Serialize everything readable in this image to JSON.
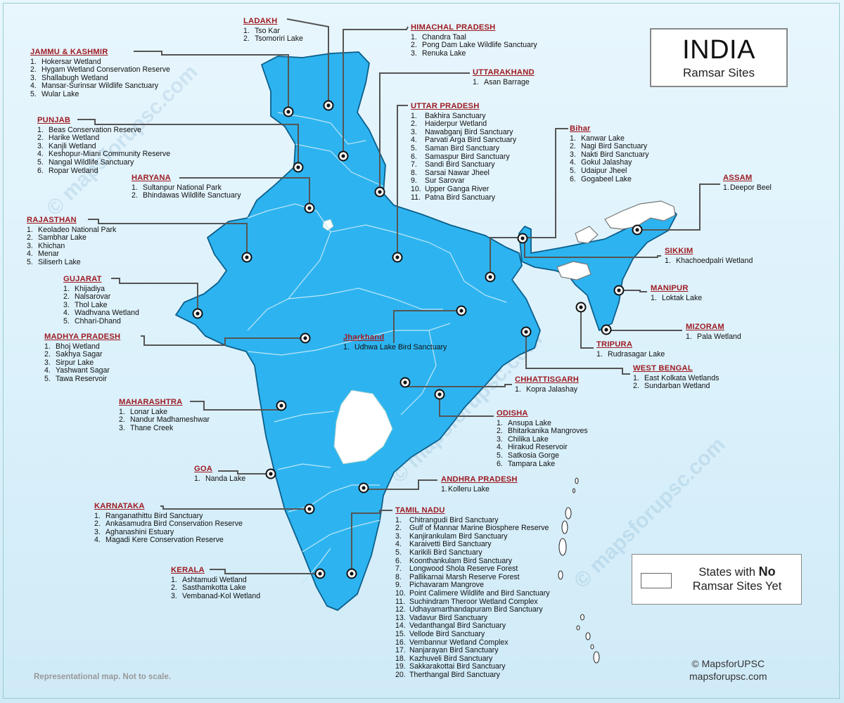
{
  "title": "INDIA",
  "subtitle": "Ramsar Sites",
  "legend": {
    "prefix": "States with ",
    "emphasis": "No",
    "suffix": "Ramsar Sites Yet",
    "swatch_color": "#ffffff"
  },
  "footnote": "Representational map. Not to scale.",
  "credit": {
    "line1": "© MapsforUPSC",
    "line2": "mapsforupsc.com"
  },
  "watermark": "© mapsforupsc.com",
  "colors": {
    "land": "#2db4f0",
    "land_border": "#0c5e8a",
    "no_sites": "#ffffff",
    "heading": "#9e1b22",
    "leader": "#555555"
  },
  "groups": [
    {
      "title": "LADAKH",
      "items": [
        "Tso Kar",
        "Tsomoriri Lake"
      ]
    },
    {
      "title": "HIMACHAL PRADESH",
      "items": [
        "Chandra Taal",
        "Pong Dam Lake Wildlife Sanctuary",
        "Renuka Lake"
      ]
    },
    {
      "title": "JAMMU & KASHMIR",
      "items": [
        "Hokersar Wetland",
        "Hygam Wetland Conservation Reserve",
        "Shallabugh Wetland",
        "Mansar-Surinsar Wildlife Sanctuary",
        "Wular Lake"
      ]
    },
    {
      "title": "UTTARAKHAND",
      "items": [
        "Asan Barrage"
      ]
    },
    {
      "title": "UTTAR PRADESH",
      "items": [
        "Bakhira Sanctuary",
        "Haiderpur Wetland",
        "Nawabganj Bird Sanctuary",
        "Parvati Arga Bird Sanctuary",
        "Saman Bird Sanctuary",
        "Samaspur Bird Sanctuary",
        "Sandi Bird Sanctuary",
        "Sarsai Nawar Jheel",
        "Sur Sarovar",
        "Upper Ganga River",
        "Patna Bird Sanctuary"
      ]
    },
    {
      "title": "PUNJAB",
      "items": [
        "Beas Conservation Reserve",
        "Harike Wetland",
        "Kanjli Wetland",
        "Keshopur-Miani Community Reserve",
        "Nangal Wildlife Sanctuary",
        "Ropar Wetland"
      ]
    },
    {
      "title": "Bihar",
      "items": [
        "Kanwar Lake",
        "Nagi Bird Sanctuary",
        "Nakti Bird Sanctuary",
        "Gokul Jalashay",
        "Udaipur Jheel",
        "Gogabeel Lake"
      ]
    },
    {
      "title": "HARYANA",
      "items": [
        "Sultanpur National Park",
        "Bhindawas Wildlife Sanctuary"
      ]
    },
    {
      "title": "ASSAM",
      "items": [
        "Deepor Beel"
      ]
    },
    {
      "title": "RAJASTHAN",
      "items": [
        "Keoladeo National Park",
        "Sambhar Lake",
        "Khichan",
        "Menar",
        "Siliserh Lake"
      ]
    },
    {
      "title": "SIKKIM",
      "items": [
        "Khachoedpalri Wetland"
      ]
    },
    {
      "title": "GUJARAT",
      "items": [
        "Khijadiya",
        "Nalsarovar",
        "Thol Lake",
        "Wadhvana Wetland",
        "Chhari-Dhand"
      ]
    },
    {
      "title": "MANIPUR",
      "items": [
        "Loktak Lake"
      ]
    },
    {
      "title": "Jharkhand",
      "items": [
        "Udhwa Lake Bird Sanctuary"
      ]
    },
    {
      "title": "MIZORAM",
      "items": [
        "Pala Wetland"
      ]
    },
    {
      "title": "MADHYA PRADESH",
      "items": [
        "Bhoj Wetland",
        "Sakhya Sagar",
        "Sirpur Lake",
        "Yashwant Sagar",
        "Tawa Reservoir"
      ]
    },
    {
      "title": "TRIPURA",
      "items": [
        "Rudrasagar Lake"
      ]
    },
    {
      "title": "WEST BENGAL",
      "items": [
        "East Kolkata Wetlands",
        "Sundarban Wetland"
      ]
    },
    {
      "title": "CHHATTISGARH",
      "items": [
        "Kopra Jalashay"
      ]
    },
    {
      "title": "MAHARASHTRA",
      "items": [
        "Lonar Lake",
        "Nandur Madhameshwar",
        "Thane Creek"
      ]
    },
    {
      "title": "ODISHA",
      "items": [
        "Ansupa Lake",
        "Bhitarkanika Mangroves",
        "Chilika Lake",
        "Hirakud Reservoir",
        "Satkosia Gorge",
        "Tampara Lake"
      ]
    },
    {
      "title": "GOA",
      "items": [
        "Nanda Lake"
      ]
    },
    {
      "title": "ANDHRA PRADESH",
      "items": [
        "Kolleru Lake"
      ]
    },
    {
      "title": "KARNATAKA",
      "items": [
        "Ranganathittu Bird Sanctuary",
        "Ankasamudra Bird Conservation Reserve",
        "Aghanashini Estuary",
        "Magadi Kere Conservation Reserve"
      ]
    },
    {
      "title": "TAMIL NADU",
      "items": [
        "Chitrangudi Bird Sanctuary",
        "Gulf of Mannar Marine Biosphere Reserve",
        "Kanjirankulam Bird Sanctuary",
        "Karaivetti Bird Sanctuary",
        "Karikili Bird Sanctuary",
        "Koonthankulam Bird Sanctuary",
        "Longwood Shola Reserve Forest",
        "Pallikarnai Marsh Reserve Forest",
        "Pichavaram Mangrove",
        "Point Calimere Wildlife and Bird Sanctuary",
        "Suchindram Theroor Wetland Complex",
        "Udhayamarthandapuram Bird Sanctuary",
        "Vadavur Bird Sanctuary",
        "Vedanthangal Bird Sanctuary",
        "Vellode Bird Sanctuary",
        "Vembannur Wetland Complex",
        "Nanjarayan Bird Sanctuary",
        "Kazhuveli Bird Sanctuary",
        "Sakkarakottai Bird Sanctuary",
        "Therthangal Bird Sanctuary"
      ]
    },
    {
      "title": "KERALA",
      "items": [
        "Ashtamudi Wetland",
        "Sasthamkotta Lake",
        "Vembanad-Kol Wetland"
      ]
    }
  ]
}
